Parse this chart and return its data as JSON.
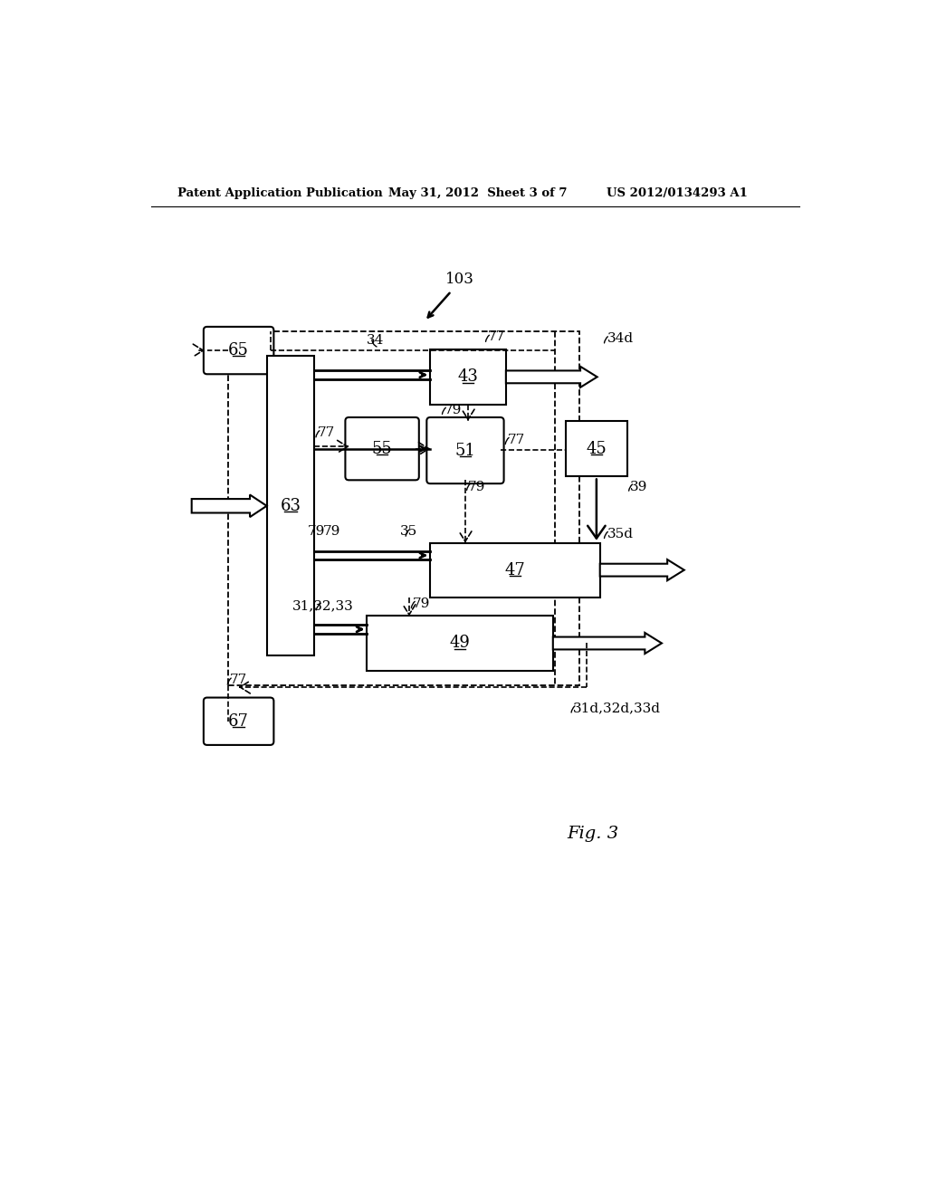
{
  "bg_color": "#ffffff",
  "header_left": "Patent Application Publication",
  "header_mid": "May 31, 2012  Sheet 3 of 7",
  "header_right": "US 2012/0134293 A1",
  "fig_label": "Fig. 3"
}
